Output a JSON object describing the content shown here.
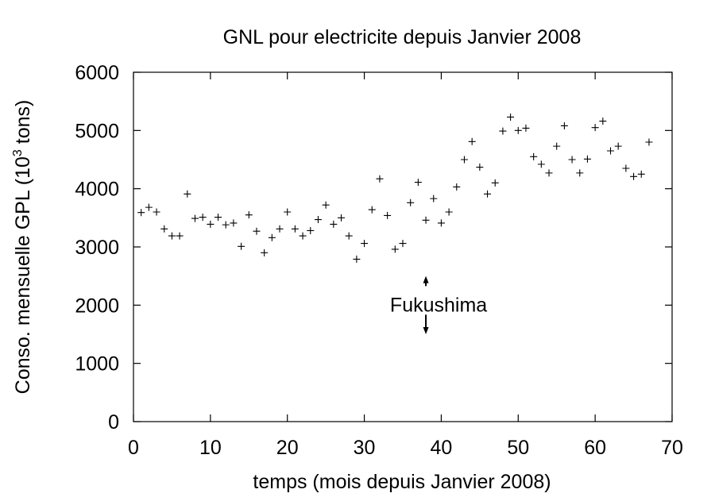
{
  "chart_data": {
    "type": "scatter",
    "title": "GNL pour electricite depuis Janvier 2008",
    "xlabel": "temps (mois depuis Janvier 2008)",
    "ylabel": "Conso. mensuelle GPL (10",
    "ylabel_sup": "3",
    "ylabel_end": " tons)",
    "xlim": [
      0,
      70
    ],
    "ylim": [
      0,
      6000
    ],
    "x_ticks": [
      "0",
      "10",
      "20",
      "30",
      "40",
      "50",
      "60",
      "70"
    ],
    "y_ticks": [
      "0",
      "1000",
      "2000",
      "3000",
      "4000",
      "5000",
      "6000"
    ],
    "grid": false,
    "marker": "+",
    "x": [
      1,
      2,
      3,
      4,
      5,
      6,
      7,
      8,
      9,
      10,
      11,
      12,
      13,
      14,
      15,
      16,
      17,
      18,
      19,
      20,
      21,
      22,
      23,
      24,
      25,
      26,
      27,
      28,
      29,
      30,
      31,
      32,
      33,
      34,
      35,
      36,
      37,
      38,
      39,
      40,
      41,
      42,
      43,
      44,
      45,
      46,
      47,
      48,
      49,
      50,
      51,
      52,
      53,
      54,
      55,
      56,
      57,
      58,
      59,
      60,
      61,
      62,
      63,
      64,
      65,
      66,
      67
    ],
    "y": [
      3590,
      3680,
      3600,
      3310,
      3190,
      3190,
      3910,
      3490,
      3510,
      3390,
      3510,
      3380,
      3410,
      3010,
      3550,
      3270,
      2900,
      3160,
      3310,
      3600,
      3310,
      3190,
      3280,
      3470,
      3720,
      3390,
      3500,
      3190,
      2790,
      3060,
      3640,
      4170,
      3540,
      2960,
      3060,
      3760,
      4110,
      3460,
      3830,
      3410,
      3600,
      4030,
      4500,
      4810,
      4370,
      3910,
      4100,
      4990,
      5230,
      5000,
      5040,
      4550,
      4420,
      4270,
      4730,
      5080,
      4500,
      4270,
      4510,
      5050,
      5160,
      4650,
      4730,
      4350,
      4210,
      4250,
      4800
    ],
    "annotation": {
      "text": "Fukushima",
      "x": 38,
      "arrow_up_to": 2500,
      "arrow_down_to": 1500
    }
  }
}
